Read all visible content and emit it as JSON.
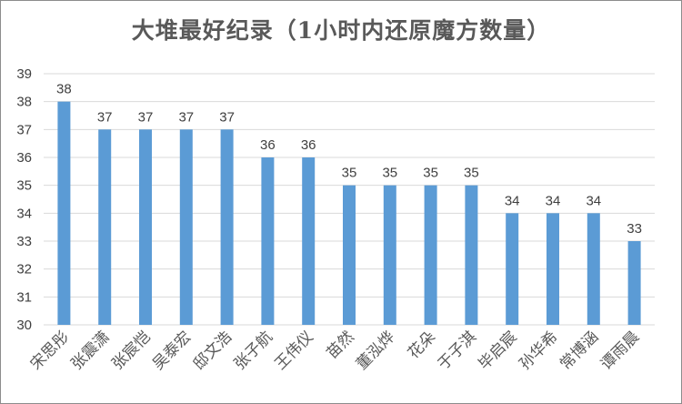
{
  "chart_data": {
    "type": "bar",
    "title": "大堆最好纪录（1小时内还原魔方数量）",
    "xlabel": "",
    "ylabel": "",
    "categories": [
      "宋思彤",
      "张震潇",
      "张宸恺",
      "吴泰宏",
      "邸文浩",
      "张子航",
      "王伟仪",
      "苗然",
      "董泓烨",
      "花朵",
      "于子淇",
      "毕启宸",
      "孙华希",
      "常博涵",
      "谭雨晨"
    ],
    "values": [
      38,
      37,
      37,
      37,
      37,
      36,
      36,
      35,
      35,
      35,
      35,
      34,
      34,
      34,
      33
    ],
    "ylim": [
      30,
      39
    ],
    "yticks": [
      30,
      31,
      32,
      33,
      34,
      35,
      36,
      37,
      38,
      39
    ],
    "grid": true,
    "legend": "none",
    "bar_color": "#5b9bd5",
    "grid_color": "#d9d9d9"
  }
}
